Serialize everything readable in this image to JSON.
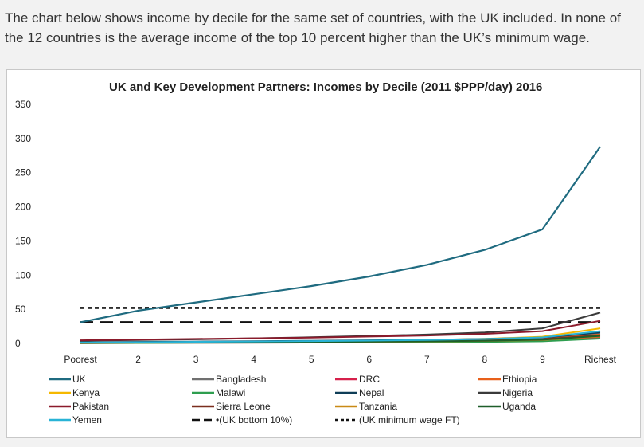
{
  "intro_text": "The chart below shows income by decile for the same set of countries, with the UK included. In none of the 12 countries is the average income of the top 10 percent higher than the UK’s minimum wage.",
  "chart_data": {
    "type": "line",
    "title": "UK and Key Development Partners: Incomes by Decile (2011 $PPP/day) 2016",
    "xlabel": "",
    "ylabel": "",
    "categories": [
      "Poorest",
      "2",
      "3",
      "4",
      "5",
      "6",
      "7",
      "8",
      "9",
      "Richest"
    ],
    "ylim": [
      0,
      350
    ],
    "yticks": [
      0,
      50,
      100,
      150,
      200,
      250,
      300,
      350
    ],
    "grid": false,
    "legend_position": "bottom",
    "series": [
      {
        "name": "UK",
        "color": "#1f6b80",
        "dash": "solid",
        "values": [
          31,
          48,
          60,
          72,
          84,
          98,
          115,
          137,
          167,
          288
        ]
      },
      {
        "name": "Bangladesh",
        "color": "#707070",
        "dash": "solid",
        "values": [
          1.5,
          2.0,
          2.4,
          2.8,
          3.3,
          3.8,
          4.5,
          5.6,
          7.5,
          14
        ]
      },
      {
        "name": "DRC",
        "color": "#d6204b",
        "dash": "solid",
        "values": [
          0.4,
          0.6,
          0.8,
          1.0,
          1.2,
          1.5,
          1.9,
          2.6,
          3.8,
          9
        ]
      },
      {
        "name": "Ethiopia",
        "color": "#e8601a",
        "dash": "solid",
        "values": [
          1.2,
          1.6,
          2.0,
          2.3,
          2.7,
          3.2,
          3.8,
          4.8,
          6.5,
          13
        ]
      },
      {
        "name": "Kenya",
        "color": "#f5b800",
        "dash": "solid",
        "values": [
          0.9,
          1.4,
          1.9,
          2.4,
          3.0,
          3.8,
          4.9,
          6.6,
          9.8,
          22
        ]
      },
      {
        "name": "Malawi",
        "color": "#2e9e4f",
        "dash": "solid",
        "values": [
          0.4,
          0.6,
          0.8,
          1.0,
          1.2,
          1.4,
          1.7,
          2.2,
          3.0,
          7
        ]
      },
      {
        "name": "Nepal",
        "color": "#0e3d57",
        "dash": "solid",
        "values": [
          1.6,
          2.2,
          2.7,
          3.2,
          3.8,
          4.5,
          5.3,
          6.5,
          8.5,
          16
        ]
      },
      {
        "name": "Nigeria",
        "color": "#3a3a3a",
        "dash": "solid",
        "values": [
          4,
          5,
          6,
          7.5,
          9,
          11,
          13,
          16,
          22,
          45
        ]
      },
      {
        "name": "Pakistan",
        "color": "#8b1a2b",
        "dash": "solid",
        "values": [
          4.5,
          5.5,
          6.5,
          7.5,
          8.5,
          10,
          11.5,
          14,
          18,
          33
        ]
      },
      {
        "name": "Sierra Leone",
        "color": "#7a2e1e",
        "dash": "solid",
        "values": [
          1.0,
          1.4,
          1.8,
          2.2,
          2.6,
          3.1,
          3.7,
          4.7,
          6.3,
          12
        ]
      },
      {
        "name": "Tanzania",
        "color": "#c98a16",
        "dash": "solid",
        "values": [
          0.7,
          1.0,
          1.3,
          1.6,
          1.9,
          2.3,
          2.8,
          3.6,
          5.0,
          10
        ]
      },
      {
        "name": "Uganda",
        "color": "#1e5e2a",
        "dash": "solid",
        "values": [
          0.8,
          1.1,
          1.4,
          1.7,
          2.0,
          2.5,
          3.0,
          3.9,
          5.4,
          11
        ]
      },
      {
        "name": "Yemen",
        "color": "#29b3d6",
        "dash": "solid",
        "values": [
          1.3,
          1.8,
          2.3,
          2.8,
          3.4,
          4.1,
          5.0,
          6.4,
          8.8,
          18
        ]
      },
      {
        "name": "(UK bottom 10%)",
        "color": "#111111",
        "dash": "longdash",
        "values": [
          31,
          31,
          31,
          31,
          31,
          31,
          31,
          31,
          31,
          31
        ]
      },
      {
        "name": "(UK minimum wage FT)",
        "color": "#111111",
        "dash": "shortdash",
        "values": [
          52,
          52,
          52,
          52,
          52,
          52,
          52,
          52,
          52,
          52
        ]
      }
    ],
    "legend_order": [
      "UK",
      "Bangladesh",
      "DRC",
      "Ethiopia",
      "Kenya",
      "Malawi",
      "Nepal",
      "Nigeria",
      "Pakistan",
      "Sierra Leone",
      "Tanzania",
      "Uganda",
      "Yemen",
      "(UK bottom 10%)",
      "(UK minimum wage FT)"
    ],
    "legend_labels": [
      "UK",
      "Bangladesh",
      "DRC",
      "Ethiopia",
      "Kenya",
      "Malawi",
      "Nepal",
      "Nigeria",
      "Pakistan",
      "Sierra Leone",
      "Tanzania",
      "Uganda",
      "Yemen",
      "•(UK bottom 10%)",
      "(UK minimum wage FT)"
    ]
  }
}
